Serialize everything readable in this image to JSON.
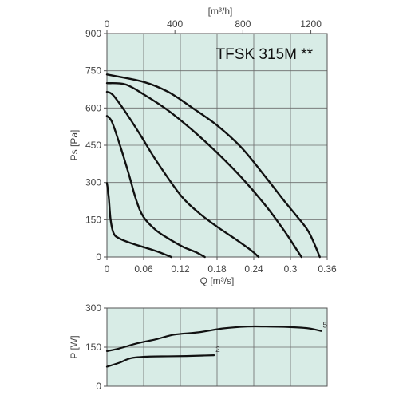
{
  "chart_data": [
    {
      "type": "line",
      "title": "TFSK 315M **",
      "xlabel": "Q [m³/s]",
      "ylabel": "Ps [Pa]",
      "x2label": "[m³/h]",
      "xlim": [
        0,
        0.36
      ],
      "ylim": [
        0,
        900
      ],
      "x2lim": [
        0,
        1296
      ],
      "xticks": [
        "0",
        "0.06",
        "0.12",
        "0.18",
        "0.24",
        "0.3",
        "0.36"
      ],
      "yticks": [
        "0",
        "150",
        "300",
        "450",
        "600",
        "750",
        "900"
      ],
      "x2ticks": [
        "0",
        "400",
        "800",
        "1200"
      ],
      "grid": true,
      "series": [
        {
          "points": [
            [
              0,
              298
            ],
            [
              0.003,
              240
            ],
            [
              0.006,
              150
            ],
            [
              0.011,
              95
            ],
            [
              0.02,
              75
            ],
            [
              0.04,
              55
            ],
            [
              0.07,
              32
            ],
            [
              0.09,
              15
            ],
            [
              0.105,
              0
            ]
          ]
        },
        {
          "points": [
            [
              0,
              568
            ],
            [
              0.008,
              545
            ],
            [
              0.02,
              460
            ],
            [
              0.035,
              340
            ],
            [
              0.048,
              228
            ],
            [
              0.06,
              160
            ],
            [
              0.08,
              108
            ],
            [
              0.1,
              75
            ],
            [
              0.125,
              40
            ],
            [
              0.145,
              20
            ],
            [
              0.16,
              0
            ]
          ]
        },
        {
          "points": [
            [
              0,
              665
            ],
            [
              0.01,
              652
            ],
            [
              0.03,
              585
            ],
            [
              0.055,
              490
            ],
            [
              0.08,
              390
            ],
            [
              0.12,
              250
            ],
            [
              0.15,
              178
            ],
            [
              0.18,
              122
            ],
            [
              0.21,
              72
            ],
            [
              0.235,
              28
            ],
            [
              0.248,
              0
            ]
          ]
        },
        {
          "points": [
            [
              0,
              700
            ],
            [
              0.03,
              695
            ],
            [
              0.06,
              655
            ],
            [
              0.1,
              590
            ],
            [
              0.14,
              510
            ],
            [
              0.18,
              420
            ],
            [
              0.22,
              320
            ],
            [
              0.26,
              205
            ],
            [
              0.29,
              105
            ],
            [
              0.31,
              30
            ],
            [
              0.318,
              0
            ]
          ]
        },
        {
          "points": [
            [
              0,
              735
            ],
            [
              0.06,
              705
            ],
            [
              0.1,
              665
            ],
            [
              0.14,
              600
            ],
            [
              0.18,
              530
            ],
            [
              0.22,
              440
            ],
            [
              0.26,
              320
            ],
            [
              0.29,
              225
            ],
            [
              0.31,
              165
            ],
            [
              0.33,
              100
            ],
            [
              0.348,
              0
            ]
          ]
        }
      ]
    },
    {
      "type": "line",
      "xlabel": "",
      "ylabel": "P [W]",
      "xlim": [
        0,
        0.36
      ],
      "ylim": [
        0,
        300
      ],
      "yticks": [
        "0",
        "150",
        "300"
      ],
      "grid": true,
      "series": [
        {
          "name": "2",
          "points": [
            [
              0,
              75
            ],
            [
              0.02,
              90
            ],
            [
              0.04,
              108
            ],
            [
              0.07,
              114
            ],
            [
              0.1,
              115
            ],
            [
              0.13,
              116
            ],
            [
              0.16,
              118
            ],
            [
              0.175,
              119
            ]
          ]
        },
        {
          "name": "5",
          "points": [
            [
              0,
              135
            ],
            [
              0.02,
              145
            ],
            [
              0.05,
              165
            ],
            [
              0.08,
              180
            ],
            [
              0.11,
              198
            ],
            [
              0.15,
              207
            ],
            [
              0.19,
              222
            ],
            [
              0.23,
              229
            ],
            [
              0.26,
              229
            ],
            [
              0.3,
              227
            ],
            [
              0.33,
              222
            ],
            [
              0.35,
              212
            ]
          ]
        }
      ]
    }
  ]
}
